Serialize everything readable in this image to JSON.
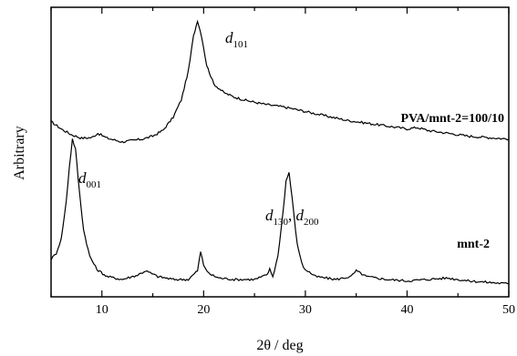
{
  "chart_data": {
    "type": "line",
    "xlabel": "2θ / deg",
    "ylabel": "Arbitrary",
    "xlim": [
      5,
      50
    ],
    "ylim": [
      0,
      1
    ],
    "xticks": [
      10,
      20,
      30,
      40,
      50
    ],
    "xtick_labels": [
      "10",
      "20",
      "30",
      "40",
      "50"
    ],
    "grid": false,
    "series": [
      {
        "name": "PVA/mnt-2=100/10",
        "x": [
          5,
          6,
          7,
          8,
          9,
          9.6,
          10.5,
          12,
          13,
          14,
          15,
          16,
          17,
          17.8,
          18.5,
          19.0,
          19.4,
          19.8,
          20.3,
          21.0,
          22,
          23,
          24,
          25,
          26,
          28,
          30,
          32,
          34,
          36,
          38,
          40,
          41,
          42,
          44,
          46,
          48,
          50
        ],
        "y": [
          0.605,
          0.58,
          0.56,
          0.548,
          0.55,
          0.565,
          0.548,
          0.535,
          0.54,
          0.545,
          0.555,
          0.575,
          0.62,
          0.68,
          0.78,
          0.9,
          0.955,
          0.9,
          0.8,
          0.735,
          0.705,
          0.69,
          0.68,
          0.672,
          0.665,
          0.655,
          0.64,
          0.625,
          0.61,
          0.6,
          0.59,
          0.58,
          0.585,
          0.575,
          0.565,
          0.555,
          0.55,
          0.545
        ]
      },
      {
        "name": "mnt-2",
        "x": [
          5,
          5.5,
          6.0,
          6.5,
          6.8,
          7.1,
          7.4,
          7.8,
          8.2,
          8.8,
          9.5,
          10.5,
          12,
          13.5,
          14.3,
          15.5,
          17,
          18.5,
          19.4,
          19.7,
          20.0,
          20.5,
          21.5,
          23,
          25,
          26.2,
          26.5,
          26.8,
          27.3,
          27.8,
          28.1,
          28.4,
          28.7,
          29.2,
          29.8,
          31,
          33,
          34.5,
          35.0,
          36,
          38,
          40,
          42,
          44,
          46,
          48,
          50
        ],
        "y": [
          0.13,
          0.15,
          0.2,
          0.33,
          0.45,
          0.545,
          0.51,
          0.36,
          0.23,
          0.14,
          0.095,
          0.07,
          0.06,
          0.075,
          0.09,
          0.07,
          0.06,
          0.06,
          0.09,
          0.155,
          0.11,
          0.08,
          0.065,
          0.06,
          0.06,
          0.075,
          0.095,
          0.07,
          0.14,
          0.29,
          0.4,
          0.43,
          0.34,
          0.18,
          0.1,
          0.07,
          0.06,
          0.07,
          0.09,
          0.07,
          0.06,
          0.055,
          0.06,
          0.065,
          0.055,
          0.05,
          0.045
        ]
      }
    ],
    "annotations": [
      {
        "main": "d",
        "sub": "101"
      },
      {
        "main": "d",
        "sub": "001"
      },
      {
        "main": "d",
        "sub": "130"
      },
      {
        "main": "d",
        "sub": "200"
      }
    ]
  }
}
